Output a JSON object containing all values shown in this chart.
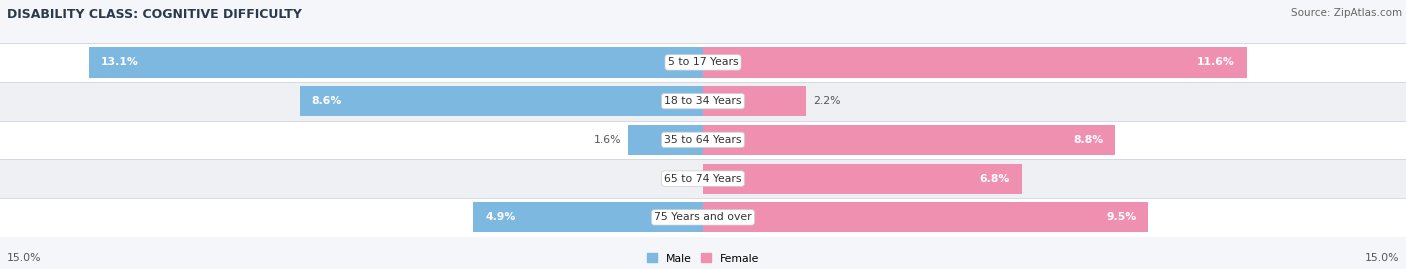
{
  "title": "DISABILITY CLASS: COGNITIVE DIFFICULTY",
  "source_text": "Source: ZipAtlas.com",
  "categories": [
    "5 to 17 Years",
    "18 to 34 Years",
    "35 to 64 Years",
    "65 to 74 Years",
    "75 Years and over"
  ],
  "male_values": [
    13.1,
    8.6,
    1.6,
    0.0,
    4.9
  ],
  "female_values": [
    11.6,
    2.2,
    8.8,
    6.8,
    9.5
  ],
  "male_color": "#7cb8e0",
  "female_color": "#f090b0",
  "male_label": "Male",
  "female_label": "Female",
  "xlim": 15.0,
  "axis_label_left": "15.0%",
  "axis_label_right": "15.0%",
  "bg_color": "#f4f6f9",
  "row_colors": [
    "#ffffff",
    "#eef0f4"
  ],
  "separator_color": "#d0d4dc",
  "title_fontsize": 9,
  "label_fontsize": 7.8,
  "source_fontsize": 7.5,
  "bar_height": 0.78,
  "title_color": "#2a3a4a",
  "label_color_white": "#ffffff",
  "label_color_dark": "#555555",
  "cat_label_fontsize": 7.8
}
